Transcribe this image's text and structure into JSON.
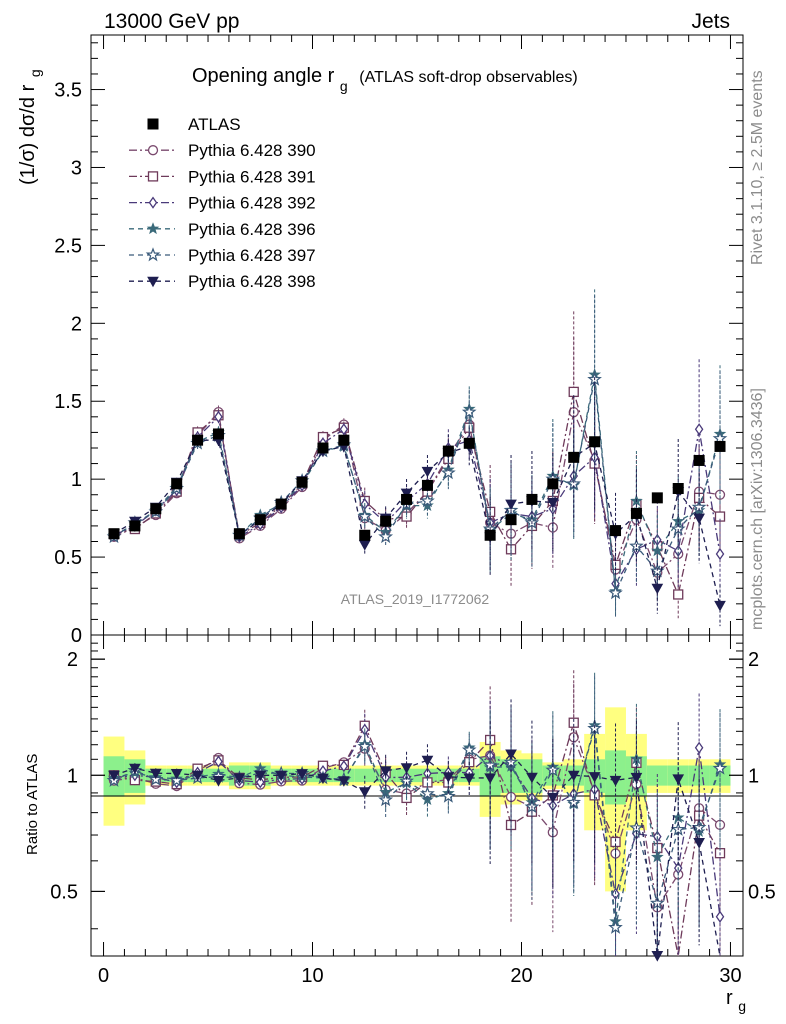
{
  "header": {
    "left": "13000 GeV pp",
    "right": "Jets"
  },
  "side_notes": {
    "rivet": "Rivet 3.1.10, ≥ 2.5M events",
    "mcplots": "mcplots.cern.ch [arXiv:1306.3436]"
  },
  "chart_data": {
    "type": "scatter",
    "title_main": "Opening angle r",
    "title_sub": "g",
    "title_extra": "(ATLAS soft-drop observables)",
    "watermark": "ATLAS_2019_I1772062",
    "ylabel": "(1/σ) dσ/d r",
    "ylabel_sub": "g",
    "xlabel": "r",
    "xlabel_sub": "g",
    "ratio_ylabel": "Ratio to ATLAS",
    "xlim": [
      -0.6,
      30.6
    ],
    "ylim": [
      0,
      3.85
    ],
    "ratio_ylim": [
      0.34,
      2.31
    ],
    "x_ticks": [
      "0",
      "10",
      "20",
      "30"
    ],
    "y_ticks": [
      "0",
      "0.5",
      "1",
      "1.5",
      "2",
      "2.5",
      "3",
      "3.5"
    ],
    "ratio_ticks": [
      "0.5",
      "1",
      "2"
    ],
    "x": [
      0.5,
      1.5,
      2.5,
      3.5,
      4.5,
      5.5,
      6.5,
      7.5,
      8.5,
      9.5,
      10.5,
      11.5,
      12.5,
      13.5,
      14.5,
      15.5,
      16.5,
      17.5,
      18.5,
      19.5,
      20.5,
      21.5,
      22.5,
      23.5,
      24.5,
      25.5,
      26.5,
      27.5,
      28.5,
      29.5
    ],
    "data": {
      "name": "ATLAS",
      "values": [
        0.65,
        0.7,
        0.81,
        0.97,
        1.25,
        1.29,
        0.65,
        0.74,
        0.84,
        0.98,
        1.2,
        1.25,
        0.64,
        0.73,
        0.87,
        0.96,
        1.18,
        1.23,
        0.64,
        0.74,
        0.87,
        0.97,
        1.14,
        1.24,
        0.67,
        0.78,
        0.88,
        0.94,
        1.12,
        1.21
      ]
    },
    "mc_series": [
      {
        "name": "Pythia 6.428 390",
        "marker": "circle",
        "color": "#7a4a6e",
        "dash": "8,3,2,3",
        "values": [
          0.63,
          0.69,
          0.77,
          0.91,
          1.28,
          1.43,
          0.62,
          0.7,
          0.81,
          0.95,
          1.25,
          1.35,
          0.75,
          0.67,
          0.78,
          0.92,
          1.15,
          1.35,
          0.72,
          0.65,
          0.72,
          0.69,
          1.43,
          1.12,
          0.42,
          0.74,
          0.4,
          0.52,
          0.92,
          0.9
        ]
      },
      {
        "name": "Pythia 6.428 391",
        "marker": "square",
        "color": "#6e3a5a",
        "dash": "8,3,2,3",
        "values": [
          0.65,
          0.68,
          0.78,
          0.92,
          1.3,
          1.41,
          0.64,
          0.72,
          0.83,
          0.97,
          1.27,
          1.33,
          0.86,
          0.74,
          0.76,
          0.92,
          1.13,
          1.33,
          0.79,
          0.55,
          0.7,
          0.86,
          1.56,
          1.1,
          0.45,
          0.84,
          0.57,
          0.26,
          0.88,
          0.76
        ]
      },
      {
        "name": "Pythia 6.428 392",
        "marker": "diamond",
        "color": "#4a3a7a",
        "dash": "8,3,2,3",
        "values": [
          0.64,
          0.7,
          0.8,
          0.93,
          1.27,
          1.4,
          0.63,
          0.71,
          0.82,
          0.96,
          1.23,
          1.32,
          0.84,
          0.72,
          0.86,
          0.97,
          1.2,
          1.25,
          0.72,
          0.78,
          0.76,
          0.81,
          1.02,
          1.14,
          0.33,
          0.55,
          0.61,
          0.54,
          1.32,
          0.52
        ]
      },
      {
        "name": "Pythia 6.428 396",
        "marker": "star-filled",
        "color": "#3a6a7a",
        "dash": "5,4",
        "values": [
          0.64,
          0.71,
          0.8,
          0.95,
          1.24,
          1.3,
          0.64,
          0.77,
          0.84,
          0.97,
          1.18,
          1.21,
          0.77,
          0.66,
          0.83,
          0.83,
          1.06,
          1.45,
          0.67,
          0.78,
          0.74,
          1.02,
          0.96,
          1.67,
          0.28,
          0.86,
          0.54,
          0.73,
          0.8,
          1.29
        ]
      },
      {
        "name": "Pythia 6.428 397",
        "marker": "star-open",
        "color": "#3a5a7a",
        "dash": "5,4",
        "values": [
          0.63,
          0.72,
          0.79,
          0.94,
          1.23,
          1.28,
          0.64,
          0.75,
          0.85,
          0.99,
          1.18,
          1.22,
          0.76,
          0.63,
          0.84,
          0.86,
          1.04,
          1.43,
          0.68,
          0.8,
          0.72,
          1.0,
          0.97,
          1.64,
          0.27,
          0.57,
          0.41,
          0.68,
          0.82,
          1.26
        ]
      },
      {
        "name": "Pythia 6.428 398",
        "marker": "triangle-down",
        "color": "#1e1e50",
        "dash": "5,4",
        "values": [
          0.65,
          0.73,
          0.82,
          0.98,
          1.25,
          1.25,
          0.64,
          0.74,
          0.84,
          0.99,
          1.18,
          1.21,
          0.58,
          0.75,
          0.91,
          1.05,
          1.17,
          1.21,
          0.63,
          0.84,
          0.86,
          0.85,
          1.14,
          1.23,
          0.65,
          0.77,
          0.3,
          0.92,
          0.75,
          0.19
        ]
      }
    ],
    "band_inner": [
      0.12,
      0.1,
      0.04,
      0.04,
      0.04,
      0.04,
      0.06,
      0.06,
      0.04,
      0.04,
      0.04,
      0.04,
      0.04,
      0.04,
      0.04,
      0.04,
      0.04,
      0.04,
      0.12,
      0.1,
      0.1,
      0.06,
      0.06,
      0.1,
      0.16,
      0.12,
      0.06,
      0.06,
      0.06,
      0.06
    ],
    "band_outer": [
      0.26,
      0.16,
      0.06,
      0.06,
      0.06,
      0.06,
      0.08,
      0.08,
      0.06,
      0.06,
      0.06,
      0.06,
      0.06,
      0.06,
      0.06,
      0.06,
      0.06,
      0.06,
      0.22,
      0.16,
      0.14,
      0.08,
      0.1,
      0.28,
      0.5,
      0.28,
      0.1,
      0.1,
      0.1,
      0.1
    ],
    "colors": {
      "band_inner": "#8cf08c",
      "band_outer": "#ffff80",
      "data": "#000000"
    }
  }
}
